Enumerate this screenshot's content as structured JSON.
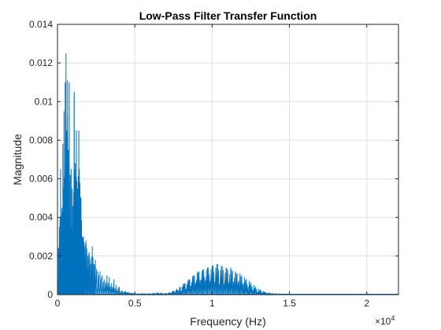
{
  "chart_data": {
    "type": "line",
    "title": "Low-Pass Filter Transfer Function",
    "xlabel": "Frequency (Hz)",
    "ylabel": "Magnitude",
    "xlim": [
      0,
      22050
    ],
    "ylim": [
      0,
      0.014
    ],
    "x_ticks": [
      0,
      5000,
      10000,
      15000,
      20000
    ],
    "x_tick_labels": [
      "0",
      "0.5",
      "1",
      "1.5",
      "2"
    ],
    "x_exponent_label": "×10",
    "x_exponent_power": "4",
    "y_ticks": [
      0,
      0.002,
      0.004,
      0.006,
      0.008,
      0.01,
      0.012,
      0.014
    ],
    "y_tick_labels": [
      "0",
      "0.002",
      "0.004",
      "0.006",
      "0.008",
      "0.01",
      "0.012",
      "0.014"
    ],
    "grid": true,
    "series_color": "#0072BD",
    "series": [
      {
        "x": [
          60,
          120,
          200,
          280,
          350,
          420,
          500,
          550,
          600,
          650,
          700,
          760,
          820,
          880,
          950,
          1010,
          1080,
          1150,
          1220,
          1300,
          1380,
          1450,
          1520,
          1600,
          1680,
          1750,
          1850,
          1950,
          2050,
          2150,
          2250,
          2350,
          2450,
          2600,
          2750,
          2900,
          3050,
          3200,
          3350,
          3500,
          3650,
          3800,
          4000,
          4200,
          4400,
          4700,
          5000,
          5500,
          6000,
          6500,
          7000,
          7500,
          7900,
          8200,
          8500,
          8800,
          9100,
          9400,
          9700,
          10000,
          10300,
          10600,
          10900,
          11200,
          11500,
          11800,
          12100,
          12400,
          12700,
          13000,
          13300,
          13600,
          14000,
          15000,
          16000,
          17000,
          18000,
          19000,
          20000,
          21000,
          22000
        ],
        "y": [
          0.0024,
          0.0035,
          0.0065,
          0.0045,
          0.0078,
          0.0095,
          0.011,
          0.0125,
          0.0085,
          0.0111,
          0.0075,
          0.011,
          0.0062,
          0.0065,
          0.0055,
          0.0046,
          0.0105,
          0.0068,
          0.0085,
          0.0055,
          0.0085,
          0.0058,
          0.005,
          0.003,
          0.003,
          0.0025,
          0.0028,
          0.002,
          0.0022,
          0.0016,
          0.0025,
          0.0016,
          0.0018,
          0.0012,
          0.0012,
          0.001,
          0.0008,
          0.001,
          0.0009,
          0.0006,
          0.0008,
          0.0005,
          0.0004,
          0.0002,
          0.0002,
          0.0001,
          5e-05,
          5e-05,
          5e-05,
          0.0001,
          5e-05,
          0.0002,
          0.0004,
          0.0006,
          0.0008,
          0.001,
          0.0012,
          0.0013,
          0.0014,
          0.0015,
          0.0016,
          0.0015,
          0.0014,
          0.0014,
          0.0012,
          0.0011,
          0.0009,
          0.0007,
          0.0005,
          0.0003,
          0.0002,
          0.0001,
          5e-05,
          3e-05,
          3e-05,
          3e-05,
          3e-05,
          3e-05,
          3e-05,
          3e-05,
          3e-05
        ]
      }
    ]
  }
}
